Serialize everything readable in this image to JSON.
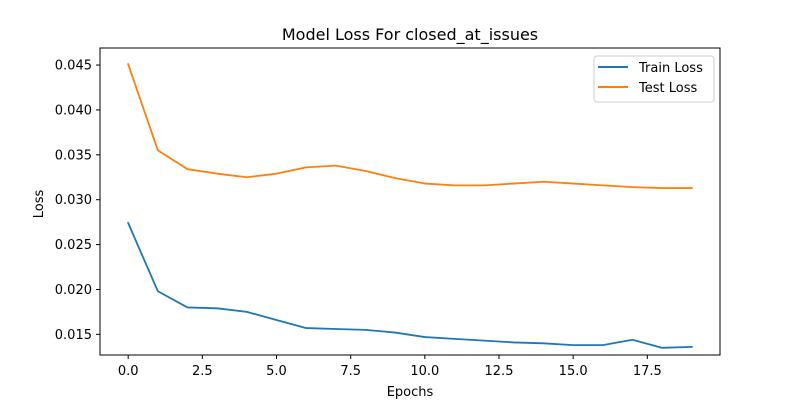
{
  "chart_data": {
    "type": "line",
    "title": "Model Loss For closed_at_issues",
    "xlabel": "Epochs",
    "ylabel": "Loss",
    "xlim": [
      -0.95,
      19.95
    ],
    "ylim": [
      0.0127,
      0.0469
    ],
    "x_ticks": [
      0.0,
      2.5,
      5.0,
      7.5,
      10.0,
      12.5,
      15.0,
      17.5
    ],
    "x_tick_labels": [
      "0.0",
      "2.5",
      "5.0",
      "7.5",
      "10.0",
      "12.5",
      "15.0",
      "17.5"
    ],
    "y_ticks": [
      0.015,
      0.02,
      0.025,
      0.03,
      0.035,
      0.04,
      0.045
    ],
    "y_tick_labels": [
      "0.015",
      "0.020",
      "0.025",
      "0.030",
      "0.035",
      "0.040",
      "0.045"
    ],
    "grid": false,
    "legend_position": "top-right",
    "x": [
      0,
      1,
      2,
      3,
      4,
      5,
      6,
      7,
      8,
      9,
      10,
      11,
      12,
      13,
      14,
      15,
      16,
      17,
      18,
      19
    ],
    "series": [
      {
        "name": "Train Loss",
        "color": "#1f77b4",
        "values": [
          0.0274,
          0.0198,
          0.018,
          0.0179,
          0.0175,
          0.0166,
          0.0157,
          0.0156,
          0.0155,
          0.0152,
          0.0147,
          0.0145,
          0.0143,
          0.0141,
          0.014,
          0.0138,
          0.0138,
          0.0144,
          0.0135,
          0.0136
        ]
      },
      {
        "name": "Test Loss",
        "color": "#ff7f0e",
        "values": [
          0.0451,
          0.0355,
          0.0334,
          0.0329,
          0.0325,
          0.0329,
          0.0336,
          0.0338,
          0.0332,
          0.0324,
          0.0318,
          0.0316,
          0.0316,
          0.0318,
          0.032,
          0.0318,
          0.0316,
          0.0314,
          0.0313,
          0.0313
        ]
      }
    ]
  }
}
